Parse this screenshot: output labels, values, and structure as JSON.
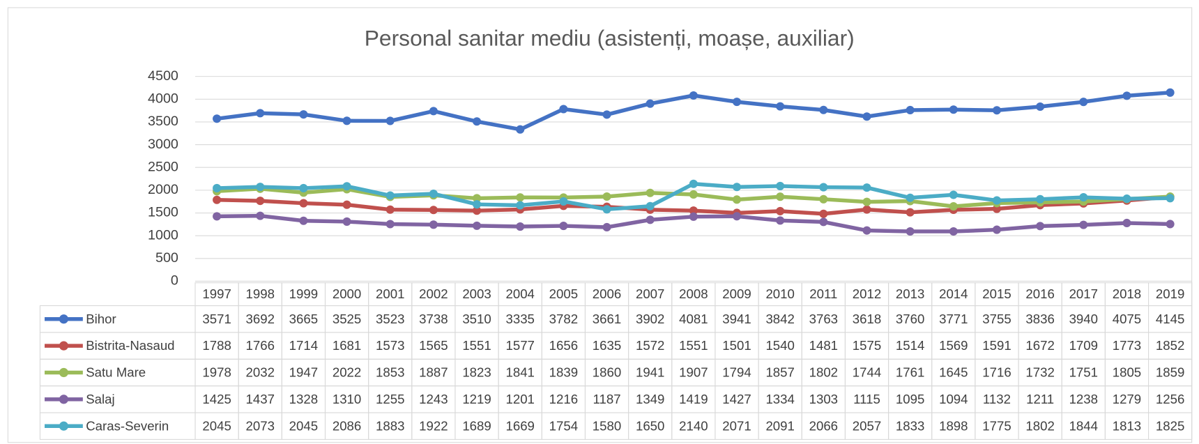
{
  "chart_data": {
    "type": "line",
    "title": "Personal sanitar mediu (asistenți, moașe, auxiliar)",
    "categories": [
      "1997",
      "1998",
      "1999",
      "2000",
      "2001",
      "2002",
      "2003",
      "2004",
      "2005",
      "2006",
      "2007",
      "2008",
      "2009",
      "2010",
      "2011",
      "2012",
      "2013",
      "2014",
      "2015",
      "2016",
      "2017",
      "2018",
      "2019"
    ],
    "series": [
      {
        "name": "Bihor",
        "color": "#4472c4",
        "values": [
          3571,
          3692,
          3665,
          3525,
          3523,
          3738,
          3510,
          3335,
          3782,
          3661,
          3902,
          4081,
          3941,
          3842,
          3763,
          3618,
          3760,
          3771,
          3755,
          3836,
          3940,
          4075,
          4145
        ]
      },
      {
        "name": "Bistrita-Nasaud",
        "color": "#c0504d",
        "values": [
          1788,
          1766,
          1714,
          1681,
          1573,
          1565,
          1551,
          1577,
          1656,
          1635,
          1572,
          1551,
          1501,
          1540,
          1481,
          1575,
          1514,
          1569,
          1591,
          1672,
          1709,
          1773,
          1852
        ]
      },
      {
        "name": "Satu Mare",
        "color": "#9bbb59",
        "values": [
          1978,
          2032,
          1947,
          2022,
          1853,
          1887,
          1823,
          1841,
          1839,
          1860,
          1941,
          1907,
          1794,
          1857,
          1802,
          1744,
          1761,
          1645,
          1716,
          1732,
          1751,
          1805,
          1859
        ]
      },
      {
        "name": "Salaj",
        "color": "#8064a2",
        "values": [
          1425,
          1437,
          1328,
          1310,
          1255,
          1243,
          1219,
          1201,
          1216,
          1187,
          1349,
          1419,
          1427,
          1334,
          1303,
          1115,
          1095,
          1094,
          1132,
          1211,
          1238,
          1279,
          1256
        ]
      },
      {
        "name": "Caras-Severin",
        "color": "#4bacc6",
        "values": [
          2045,
          2073,
          2045,
          2086,
          1883,
          1922,
          1689,
          1669,
          1754,
          1580,
          1650,
          2140,
          2071,
          2091,
          2066,
          2057,
          1833,
          1898,
          1775,
          1802,
          1844,
          1813,
          1825
        ]
      }
    ],
    "ylim": [
      0,
      4500
    ],
    "yticks": [
      0,
      500,
      1000,
      1500,
      2000,
      2500,
      3000,
      3500,
      4000,
      4500
    ],
    "grid": true
  }
}
